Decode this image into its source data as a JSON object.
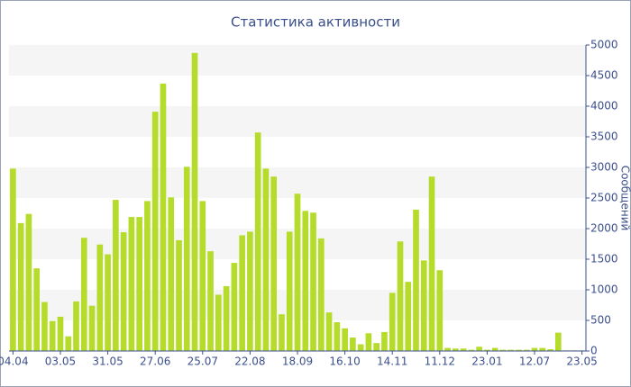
{
  "chart_data": {
    "type": "bar",
    "title": "Статистика активности",
    "y_axis_label": "Сообщений",
    "categories": [
      "04.04",
      null,
      null,
      null,
      null,
      null,
      "03.05",
      null,
      null,
      null,
      null,
      null,
      "31.05",
      null,
      null,
      null,
      null,
      null,
      "27.06",
      null,
      null,
      null,
      null,
      null,
      "25.07",
      null,
      null,
      null,
      null,
      null,
      "22.08",
      null,
      null,
      null,
      null,
      null,
      "18.09",
      null,
      null,
      null,
      null,
      null,
      "16.10",
      null,
      null,
      null,
      null,
      null,
      "14.11",
      null,
      null,
      null,
      null,
      null,
      "11.12",
      null,
      null,
      null,
      null,
      null,
      "23.01",
      null,
      null,
      null,
      null,
      null,
      "12.07",
      null,
      null,
      null,
      null,
      null,
      "23.05"
    ],
    "values": [
      2980,
      2090,
      2240,
      1350,
      800,
      490,
      560,
      240,
      810,
      1850,
      740,
      1740,
      1580,
      2470,
      1940,
      2190,
      2190,
      2450,
      3910,
      4370,
      2510,
      1810,
      3010,
      4870,
      2450,
      1630,
      920,
      1060,
      1440,
      1890,
      1950,
      3570,
      2980,
      2850,
      600,
      1950,
      2570,
      2290,
      2260,
      1840,
      630,
      470,
      370,
      220,
      110,
      290,
      130,
      310,
      950,
      1790,
      1130,
      2310,
      1480,
      2850,
      1320,
      50,
      40,
      40,
      20,
      70,
      20,
      50,
      20,
      20,
      20,
      20,
      50,
      50,
      30,
      300,
      10,
      10,
      10
    ],
    "color": "#b5dc2a",
    "ylim": [
      0,
      5000
    ],
    "yticks": [
      0,
      500,
      1000,
      1500,
      2000,
      2500,
      3000,
      3500,
      4000,
      4500,
      5000
    ],
    "grid_bands": true
  }
}
